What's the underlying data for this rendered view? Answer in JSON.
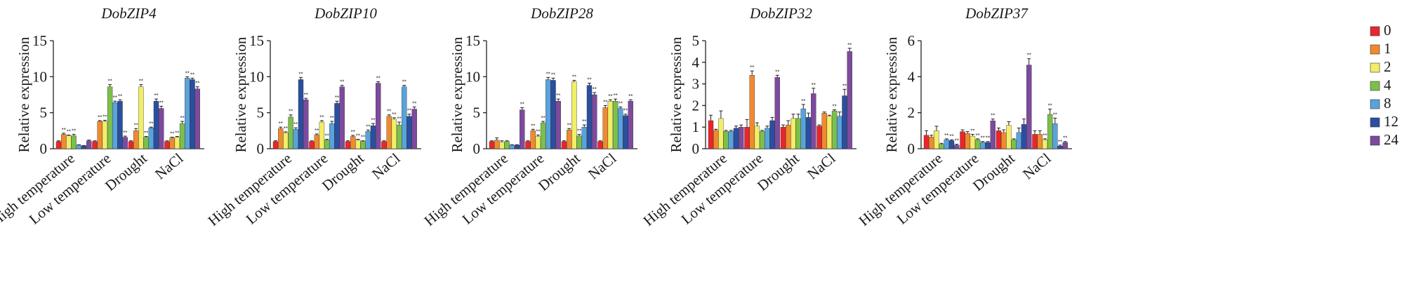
{
  "chart_data": {
    "type": "bar",
    "ylabel": "Relative expression",
    "categories": [
      "High temperature",
      "Low temperature",
      "Drought",
      "NaCl"
    ],
    "legend": {
      "position": "right",
      "entries": [
        {
          "name": "0",
          "color": "#e8262c"
        },
        {
          "name": "1",
          "color": "#f08a2e"
        },
        {
          "name": "2",
          "color": "#f2ee68"
        },
        {
          "name": "4",
          "color": "#7cc04a"
        },
        {
          "name": "8",
          "color": "#59a3db"
        },
        {
          "name": "12",
          "color": "#2a4fa0"
        },
        {
          "name": "24",
          "color": "#7d4a9e"
        }
      ]
    },
    "star_text": "**",
    "panels": [
      {
        "title": "DobZIP4",
        "ylim": [
          0,
          15
        ],
        "yticks": [
          "0",
          "5",
          "10",
          "15"
        ],
        "values": [
          [
            1.0,
            2.0,
            1.8,
            1.8,
            0.5,
            0.4,
            1.1
          ],
          [
            1.0,
            3.8,
            3.8,
            8.6,
            6.4,
            6.6,
            1.6
          ],
          [
            1.0,
            2.5,
            8.6,
            1.6,
            2.9,
            6.6,
            5.6
          ],
          [
            1.0,
            1.5,
            1.6,
            3.5,
            9.8,
            9.6,
            8.3
          ]
        ],
        "errors": [
          [
            0.1,
            0.15,
            0.1,
            0.2,
            0.05,
            0.05,
            0.1
          ],
          [
            0.1,
            0.1,
            0.15,
            0.3,
            0.2,
            0.2,
            0.15
          ],
          [
            0.1,
            0.3,
            0.3,
            0.1,
            0.1,
            0.3,
            0.3
          ],
          [
            0.1,
            0.1,
            0.1,
            0.3,
            0.2,
            0.2,
            0.3
          ]
        ],
        "stars": [
          [
            0,
            1,
            1,
            1,
            0,
            0,
            0
          ],
          [
            0,
            1,
            1,
            1,
            1,
            1,
            1
          ],
          [
            0,
            1,
            1,
            1,
            1,
            1,
            1
          ],
          [
            0,
            1,
            1,
            1,
            1,
            1,
            1
          ]
        ]
      },
      {
        "title": "DobZIP10",
        "ylim": [
          0,
          15
        ],
        "yticks": [
          "0",
          "5",
          "10",
          "15"
        ],
        "values": [
          [
            1.0,
            2.8,
            2.2,
            4.4,
            2.7,
            9.6,
            6.8
          ],
          [
            1.0,
            1.9,
            3.7,
            1.2,
            3.5,
            6.3,
            8.6
          ],
          [
            1.0,
            1.7,
            1.2,
            1.0,
            2.4,
            3.2,
            9.1
          ],
          [
            1.0,
            4.5,
            4.1,
            3.3,
            8.6,
            4.5,
            5.5
          ]
        ],
        "errors": [
          [
            0.1,
            0.2,
            0.15,
            0.3,
            0.2,
            0.3,
            0.2
          ],
          [
            0.1,
            0.15,
            0.2,
            0.1,
            0.3,
            0.3,
            0.2
          ],
          [
            0.1,
            0.15,
            0.1,
            0.1,
            0.2,
            0.3,
            0.2
          ],
          [
            0.1,
            0.2,
            0.2,
            0.4,
            0.2,
            0.3,
            0.3
          ]
        ],
        "stars": [
          [
            0,
            1,
            1,
            1,
            1,
            1,
            1
          ],
          [
            0,
            1,
            1,
            1,
            1,
            1,
            1
          ],
          [
            0,
            1,
            1,
            1,
            1,
            1,
            1
          ],
          [
            0,
            1,
            1,
            1,
            1,
            1,
            1
          ]
        ]
      },
      {
        "title": "DobZIP28",
        "ylim": [
          0,
          15
        ],
        "yticks": [
          "0",
          "5",
          "10",
          "15"
        ],
        "values": [
          [
            1.0,
            1.2,
            0.9,
            1.0,
            0.5,
            0.5,
            5.4
          ],
          [
            1.0,
            2.5,
            1.7,
            3.6,
            9.6,
            9.5,
            6.6
          ],
          [
            1.0,
            2.6,
            9.3,
            1.8,
            3.0,
            8.8,
            7.5
          ],
          [
            1.0,
            5.7,
            6.6,
            6.6,
            5.6,
            4.6,
            6.6
          ]
        ],
        "errors": [
          [
            0.1,
            0.3,
            0.2,
            0.1,
            0.05,
            0.05,
            0.3
          ],
          [
            0.1,
            0.2,
            0.2,
            0.2,
            0.3,
            0.3,
            0.3
          ],
          [
            0.1,
            0.2,
            0.2,
            0.2,
            0.3,
            0.3,
            0.3
          ],
          [
            0.1,
            0.3,
            0.2,
            0.3,
            0.2,
            0.2,
            0.2
          ]
        ],
        "stars": [
          [
            0,
            0,
            0,
            0,
            0,
            0,
            1
          ],
          [
            0,
            1,
            1,
            1,
            1,
            1,
            1
          ],
          [
            0,
            1,
            1,
            1,
            1,
            1,
            1
          ],
          [
            0,
            1,
            1,
            1,
            1,
            1,
            1
          ]
        ]
      },
      {
        "title": "DobZIP32",
        "ylim": [
          0,
          5
        ],
        "yticks": [
          "0",
          "1",
          "2",
          "3",
          "4",
          "5"
        ],
        "values": [
          [
            1.3,
            0.85,
            1.4,
            0.8,
            0.8,
            0.95,
            1.0
          ],
          [
            1.0,
            3.4,
            1.05,
            0.8,
            0.95,
            1.3,
            3.3
          ],
          [
            1.0,
            1.1,
            1.4,
            1.4,
            1.85,
            1.45,
            2.55
          ],
          [
            1.05,
            1.65,
            1.5,
            1.75,
            1.5,
            2.45,
            4.5
          ]
        ],
        "errors": [
          [
            0.25,
            0.05,
            0.35,
            0.05,
            0.05,
            0.1,
            0.1
          ],
          [
            0.35,
            0.2,
            0.15,
            0.05,
            0.1,
            0.15,
            0.1
          ],
          [
            0.1,
            0.2,
            0.2,
            0.2,
            0.2,
            0.2,
            0.25
          ],
          [
            0.05,
            0.05,
            0.05,
            0.05,
            0.2,
            0.3,
            0.15
          ]
        ],
        "stars": [
          [
            0,
            0,
            0,
            0,
            0,
            0,
            0
          ],
          [
            0,
            1,
            0,
            0,
            0,
            0,
            1
          ],
          [
            0,
            0,
            0,
            0,
            1,
            0,
            1
          ],
          [
            0,
            0,
            0,
            1,
            0,
            1,
            1
          ]
        ]
      },
      {
        "title": "DobZIP37",
        "ylim": [
          0,
          6
        ],
        "yticks": [
          "0",
          "2",
          "4",
          "6"
        ],
        "values": [
          [
            0.75,
            0.65,
            1.0,
            0.25,
            0.5,
            0.45,
            0.2
          ],
          [
            0.95,
            0.85,
            0.7,
            0.5,
            0.35,
            0.35,
            1.55
          ],
          [
            1.0,
            0.9,
            1.3,
            0.5,
            0.9,
            1.35,
            4.65
          ],
          [
            0.8,
            0.8,
            0.5,
            1.9,
            1.4,
            0.15,
            0.35
          ]
        ],
        "errors": [
          [
            0.25,
            0.1,
            0.25,
            0.05,
            0.05,
            0.05,
            0.05
          ],
          [
            0.1,
            0.1,
            0.1,
            0.05,
            0.05,
            0.05,
            0.1
          ],
          [
            0.15,
            0.15,
            0.2,
            0.05,
            0.25,
            0.3,
            0.35
          ],
          [
            0.2,
            0.2,
            0.05,
            0.3,
            0.3,
            0.05,
            0.05
          ]
        ],
        "stars": [
          [
            0,
            0,
            0,
            0,
            1,
            1,
            1
          ],
          [
            0,
            0,
            1,
            1,
            1,
            1,
            1
          ],
          [
            0,
            0,
            0,
            0,
            0,
            0,
            1
          ],
          [
            0,
            0,
            1,
            1,
            1,
            1,
            1
          ]
        ]
      }
    ]
  }
}
